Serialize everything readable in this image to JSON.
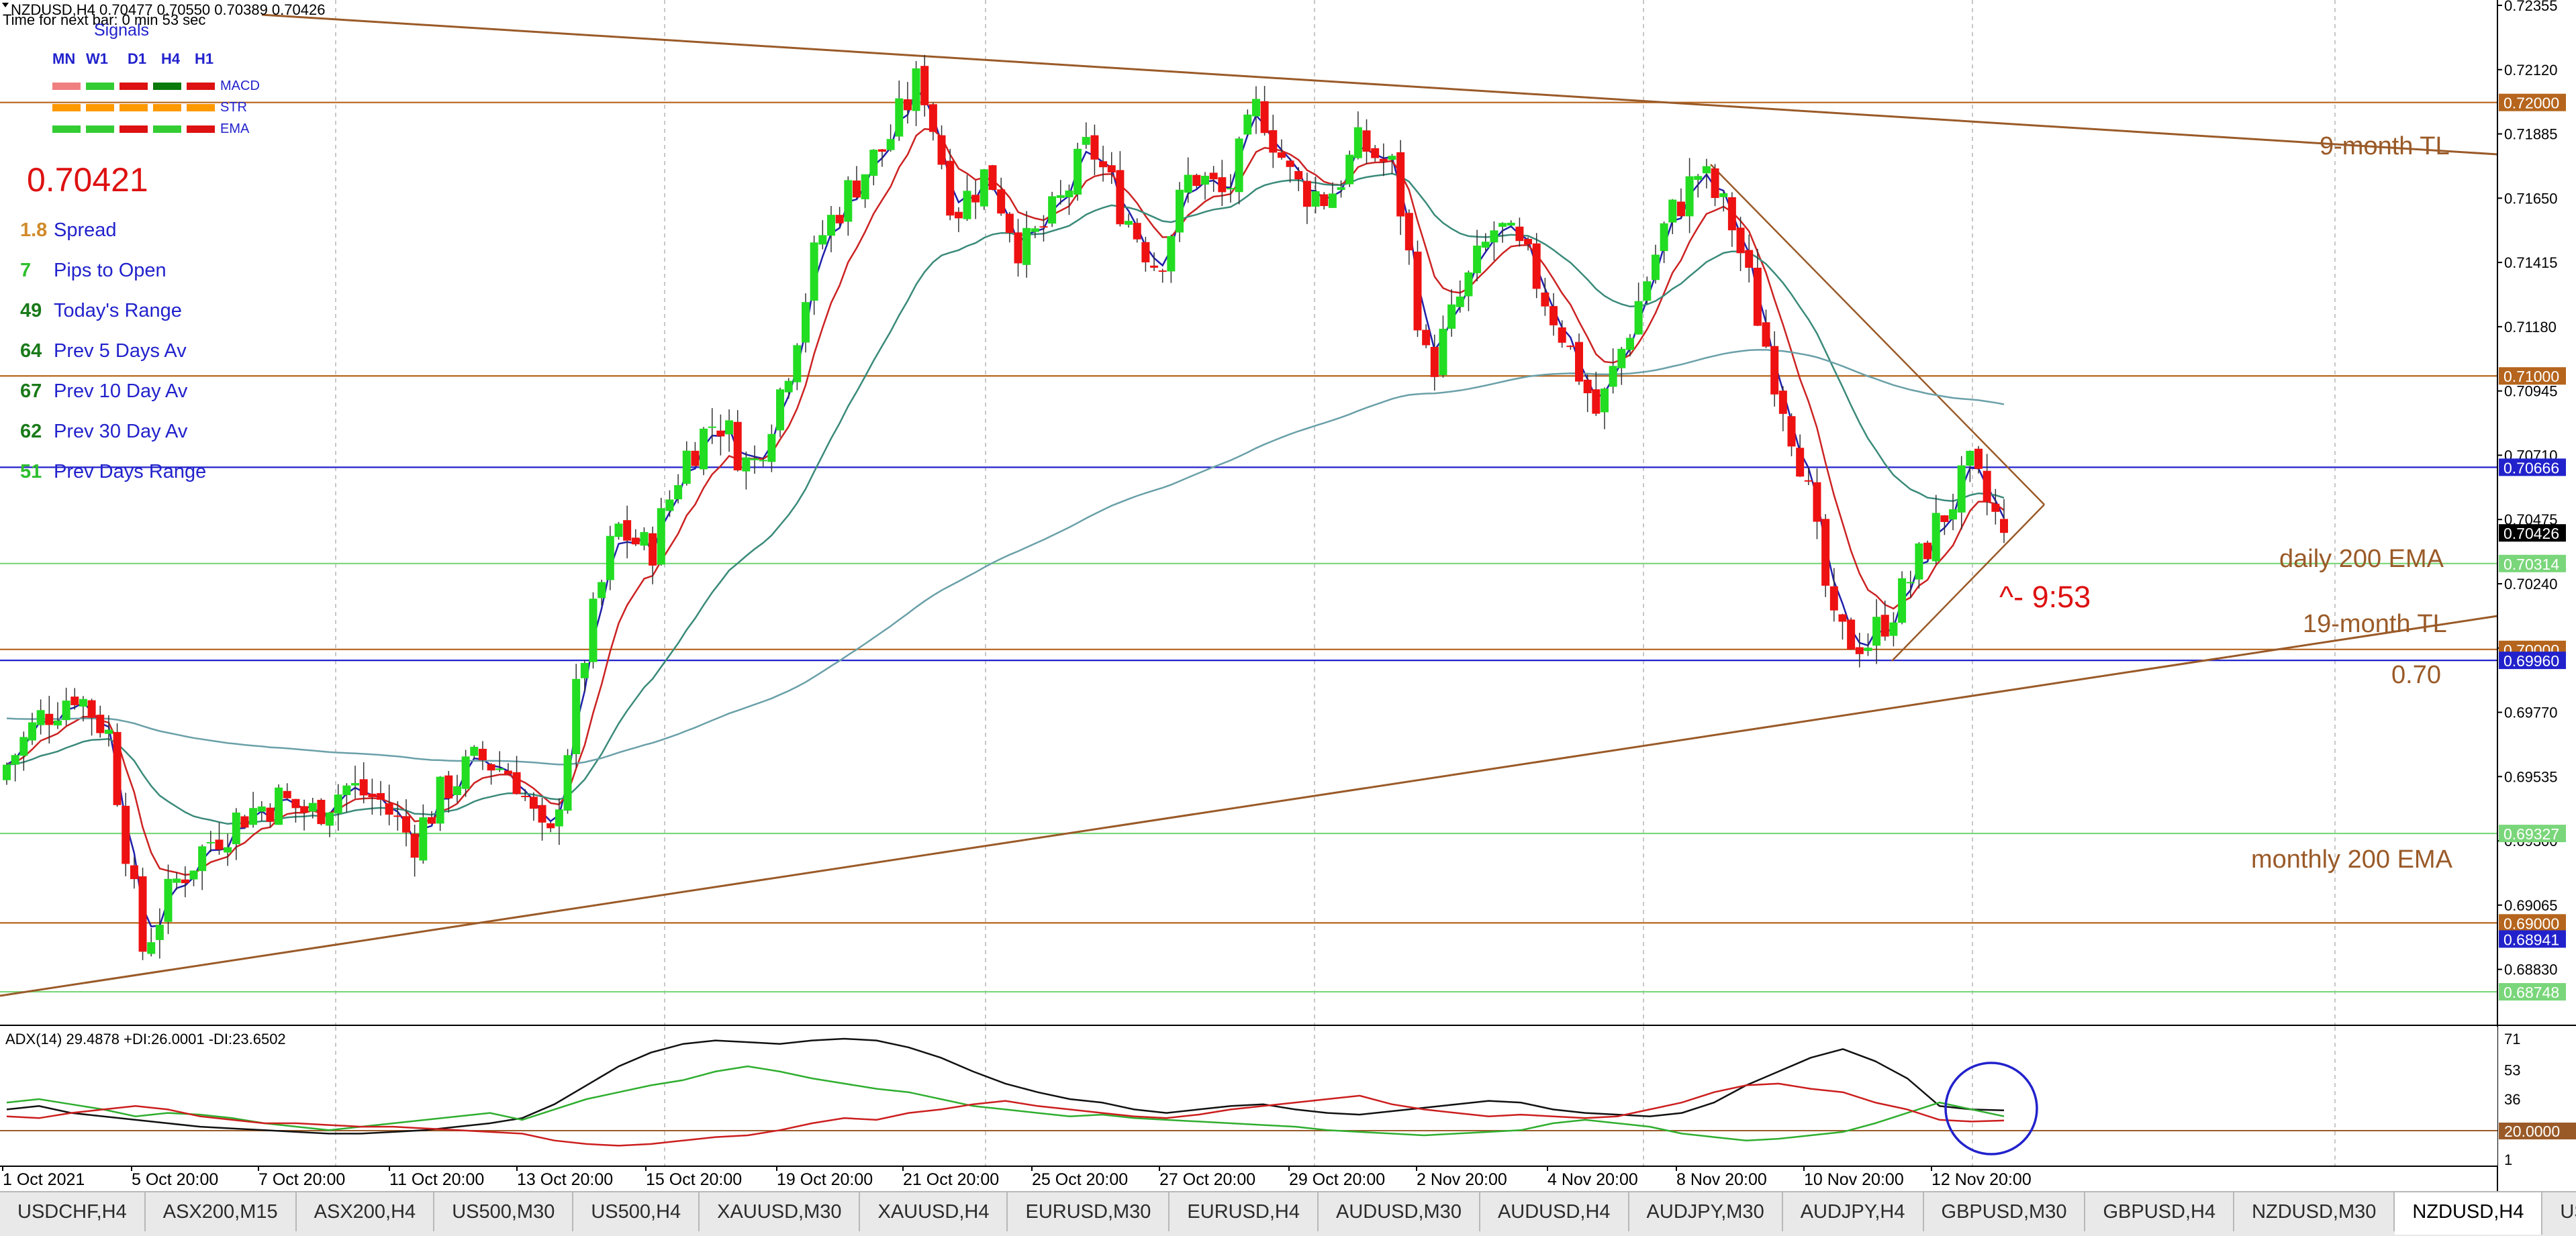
{
  "header": {
    "symbol_line": "NZDUSD,H4  0.70477 0.70550 0.70389 0.70426",
    "time_next_bar": "Time for next bar: 0 min 53 sec"
  },
  "signals": {
    "title": "Signals",
    "timeframes": [
      "MN",
      "W1",
      "D1",
      "H4",
      "H1"
    ],
    "rows": [
      {
        "label": "MACD",
        "colors": [
          "#f08080",
          "#33cc33",
          "#dd1111",
          "#0a7a0a",
          "#dd1111"
        ]
      },
      {
        "label": "STR",
        "colors": [
          "#ff9900",
          "#ff9900",
          "#ff9900",
          "#ff9900",
          "#ff9900"
        ]
      },
      {
        "label": "EMA",
        "colors": [
          "#33cc33",
          "#33cc33",
          "#dd1111",
          "#33cc33",
          "#dd1111"
        ]
      }
    ]
  },
  "stats": {
    "price": "0.70421",
    "items": [
      {
        "value": "1.8",
        "label": "Spread",
        "value_color": "#d08a2a"
      },
      {
        "value": "7",
        "label": "Pips to Open",
        "value_color": "#2fbf2f"
      },
      {
        "value": "49",
        "label": "Today's Range",
        "value_color": "#1a7a1a"
      },
      {
        "value": "64",
        "label": "Prev 5 Days Av",
        "value_color": "#1a7a1a"
      },
      {
        "value": "67",
        "label": "Prev 10 Day Av",
        "value_color": "#1a7a1a"
      },
      {
        "value": "62",
        "label": "Prev 30 Day Av",
        "value_color": "#1a7a1a"
      },
      {
        "value": "51",
        "label": "Prev Days Range",
        "value_color": "#2fbf2f"
      }
    ]
  },
  "price_axis": {
    "ticks": [
      "0.72355",
      "0.72120",
      "0.71885",
      "0.71650",
      "0.71415",
      "0.71180",
      "0.70945",
      "0.70710",
      "0.70475",
      "0.70240",
      "0.70005",
      "0.69770",
      "0.69535",
      "0.69300",
      "0.69065",
      "0.68830"
    ]
  },
  "level_labels": [
    {
      "value": "0.72000",
      "price": 0.72,
      "bg": "#b5651d",
      "fg": "#ffffff",
      "line": "#b5651d"
    },
    {
      "value": "0.71000",
      "price": 0.71,
      "bg": "#b5651d",
      "fg": "#ffffff",
      "line": "#b5651d"
    },
    {
      "value": "0.70666",
      "price": 0.70666,
      "bg": "#2222cc",
      "fg": "#ffffff",
      "line": "#2222cc"
    },
    {
      "value": "0.70426",
      "price": 0.70426,
      "bg": "#000000",
      "fg": "#ffffff",
      "line": ""
    },
    {
      "value": "0.70314",
      "price": 0.70314,
      "bg": "#7ad67a",
      "fg": "#ffffff",
      "line": "#7ad67a"
    },
    {
      "value": "0.70000",
      "price": 0.7,
      "bg": "#b5651d",
      "fg": "#ffffff",
      "line": "#b5651d"
    },
    {
      "value": "0.69960",
      "price": 0.6996,
      "bg": "#2222cc",
      "fg": "#ffffff",
      "line": "#2222cc"
    },
    {
      "value": "0.69327",
      "price": 0.69327,
      "bg": "#7ad67a",
      "fg": "#ffffff",
      "line": "#7ad67a"
    },
    {
      "value": "0.69000",
      "price": 0.69,
      "bg": "#b5651d",
      "fg": "#ffffff",
      "line": "#b5651d"
    },
    {
      "value": "0.68941",
      "price": 0.68941,
      "bg": "#2222cc",
      "fg": "#ffffff",
      "line": ""
    },
    {
      "value": "0.68748",
      "price": 0.68748,
      "bg": "#7ad67a",
      "fg": "#ffffff",
      "line": "#7ad67a"
    }
  ],
  "annotations": {
    "nine_month_tl": "9-month TL",
    "daily_200_ema": "daily 200 EMA",
    "countdown": "^- 9:53",
    "nineteen_month_tl": "19-month TL",
    "level_070": "0.70",
    "monthly_200_ema": "monthly 200 EMA"
  },
  "adx": {
    "label": "ADX(14) 29.4878 +DI:26.0001 -DI:23.6502",
    "axis_ticks": [
      "71",
      "53",
      "36",
      "18",
      "1"
    ],
    "level_label": "20.0000"
  },
  "time_axis": {
    "ticks": [
      "1 Oct 2021",
      "5 Oct 20:00",
      "7 Oct 20:00",
      "11 Oct 20:00",
      "13 Oct 20:00",
      "15 Oct 20:00",
      "19 Oct 20:00",
      "21 Oct 20:00",
      "25 Oct 20:00",
      "27 Oct 20:00",
      "29 Oct 20:00",
      "2 Nov 20:00",
      "4 Nov 20:00",
      "8 Nov 20:00",
      "10 Nov 20:00",
      "12 Nov 20:00"
    ]
  },
  "tabs": [
    "USDCHF,H4",
    "ASX200,M15",
    "ASX200,H4",
    "US500,M30",
    "US500,H4",
    "XAUUSD,M30",
    "XAUUSD,H4",
    "EURUSD,M30",
    "EURUSD,H4",
    "AUDUSD,M30",
    "AUDUSD,H4",
    "AUDJPY,M30",
    "AUDJPY,H4",
    "GBPUSD,M30",
    "GBPUSD,H4",
    "NZDUSD,M30",
    "NZDUSD,H4",
    "USDCAD"
  ],
  "active_tab": "NZDUSD,H4",
  "chart_data": {
    "type": "candlestick",
    "symbol": "NZDUSD",
    "timeframe": "H4",
    "ohlc_last": {
      "open": 0.70477,
      "high": 0.7055,
      "low": 0.70389,
      "close": 0.70426
    },
    "ylim": [
      0.6865,
      0.7236
    ],
    "waypoints": [
      [
        0.6952,
        0.6958
      ],
      [
        0.697,
        0.6975
      ],
      [
        0.6968,
        0.6985
      ],
      [
        0.695,
        0.697
      ],
      [
        0.69,
        0.689
      ],
      [
        0.6915,
        0.6915
      ],
      [
        0.6925,
        0.693
      ],
      [
        0.694,
        0.694
      ],
      [
        0.6945,
        0.6945
      ],
      [
        0.6935,
        0.694
      ],
      [
        0.695,
        0.695
      ],
      [
        0.6945,
        0.6945
      ],
      [
        0.6935,
        0.693
      ],
      [
        0.695,
        0.695
      ],
      [
        0.696,
        0.696
      ],
      [
        0.6958,
        0.6955
      ],
      [
        0.694,
        0.6925
      ],
      [
        0.699,
        0.6995
      ],
      [
        0.703,
        0.7045
      ],
      [
        0.704,
        0.7035
      ],
      [
        0.706,
        0.707
      ],
      [
        0.708,
        0.7085
      ],
      [
        0.707,
        0.7065
      ],
      [
        0.709,
        0.71
      ],
      [
        0.714,
        0.715
      ],
      [
        0.717,
        0.717
      ],
      [
        0.718,
        0.7185
      ],
      [
        0.72,
        0.721
      ],
      [
        0.7175,
        0.716
      ],
      [
        0.7165,
        0.7175
      ],
      [
        0.715,
        0.7145
      ],
      [
        0.7155,
        0.716
      ],
      [
        0.718,
        0.7185
      ],
      [
        0.7175,
        0.716
      ],
      [
        0.715,
        0.714
      ],
      [
        0.717,
        0.7175
      ],
      [
        0.716,
        0.7165
      ],
      [
        0.7195,
        0.72
      ],
      [
        0.7175,
        0.717
      ],
      [
        0.716,
        0.7165
      ],
      [
        0.717,
        0.7185
      ],
      [
        0.718,
        0.7175
      ],
      [
        0.711,
        0.71
      ],
      [
        0.7125,
        0.713
      ],
      [
        0.715,
        0.7155
      ],
      [
        0.714,
        0.714
      ],
      [
        0.712,
        0.7115
      ],
      [
        0.709,
        0.7085
      ],
      [
        0.711,
        0.712
      ],
      [
        0.715,
        0.7155
      ],
      [
        0.717,
        0.7175
      ],
      [
        0.716,
        0.7155
      ],
      [
        0.712,
        0.711
      ],
      [
        0.708,
        0.707
      ],
      [
        0.701,
        0.7005
      ],
      [
        0.7,
        0.7003
      ],
      [
        0.7015,
        0.702
      ],
      [
        0.704,
        0.7045
      ],
      [
        0.7065,
        0.7065
      ],
      [
        0.7045,
        0.70426
      ]
    ],
    "emas": [
      {
        "period": "fast",
        "color": "#1f1faa"
      },
      {
        "period": "medium",
        "color": "#cc2222"
      },
      {
        "period": "slow",
        "color": "#3a8a7a"
      },
      {
        "period": "200",
        "color": "#6aa0a8"
      }
    ],
    "adx_series": [
      {
        "name": "ADX",
        "color": "#111111",
        "values": [
          30,
          32,
          28,
          26,
          24,
          22,
          20,
          19,
          18,
          17,
          16,
          16,
          17,
          18,
          20,
          22,
          25,
          33,
          44,
          55,
          63,
          68,
          70,
          69,
          68,
          70,
          71,
          70,
          66,
          60,
          52,
          45,
          40,
          36,
          34,
          30,
          28,
          30,
          32,
          33,
          30,
          28,
          27,
          29,
          31,
          33,
          35,
          34,
          30,
          28,
          27,
          26,
          28,
          34,
          44,
          52,
          60,
          65,
          58,
          48,
          32,
          30,
          29.5
        ]
      },
      {
        "name": "+DI",
        "color": "#2fae2f",
        "values": [
          34,
          36,
          33,
          30,
          26,
          28,
          27,
          25,
          22,
          20,
          18,
          20,
          22,
          24,
          26,
          28,
          24,
          30,
          36,
          40,
          44,
          47,
          52,
          55,
          52,
          48,
          45,
          42,
          40,
          36,
          32,
          30,
          28,
          26,
          27,
          25,
          24,
          23,
          22,
          21,
          20,
          18,
          17,
          16,
          15,
          16,
          17,
          18,
          22,
          24,
          22,
          20,
          16,
          14,
          12,
          13,
          15,
          17,
          22,
          28,
          34,
          30,
          26
        ]
      },
      {
        "name": "-DI",
        "color": "#cc1e1e",
        "values": [
          26,
          25,
          28,
          30,
          32,
          30,
          26,
          24,
          22,
          22,
          21,
          20,
          20,
          19,
          18,
          17,
          16,
          12,
          10,
          9,
          10,
          12,
          14,
          15,
          18,
          22,
          25,
          24,
          28,
          30,
          33,
          35,
          32,
          30,
          28,
          26,
          25,
          27,
          30,
          32,
          34,
          36,
          38,
          33,
          30,
          28,
          26,
          27,
          26,
          25,
          26,
          30,
          34,
          40,
          44,
          45,
          42,
          40,
          34,
          30,
          24,
          23,
          23.6
        ]
      }
    ],
    "adx_level": 20
  }
}
